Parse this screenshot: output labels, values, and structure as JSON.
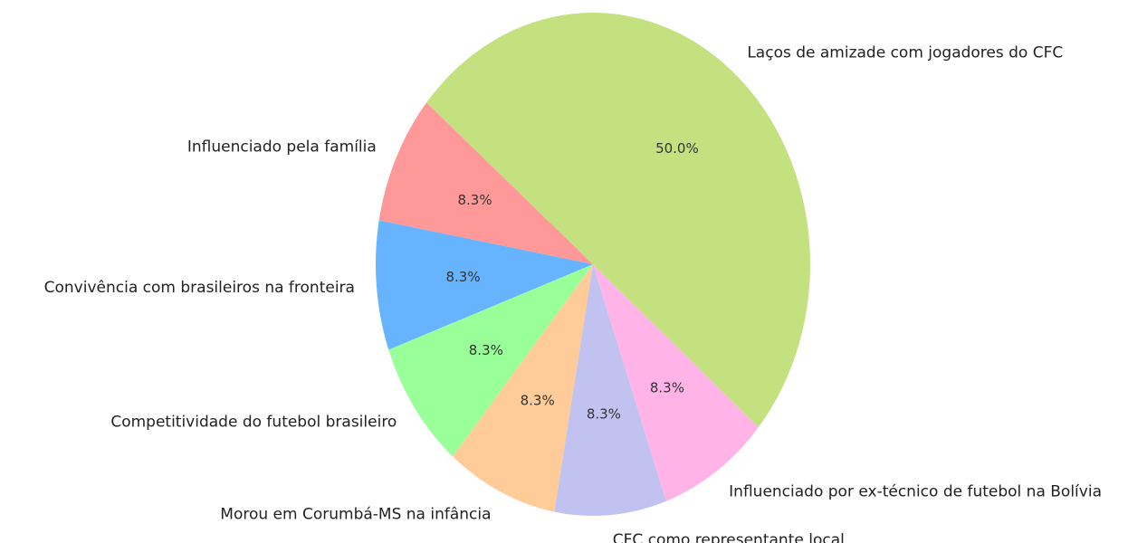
{
  "chart_data": {
    "type": "pie",
    "categories": [
      "Influenciado pela família",
      "Convivência com brasileiros na fronteira",
      "Competitividade do futebol brasileiro",
      "Morou em Corumbá-MS na infância",
      "CFC como representante local",
      "Influenciado por ex-técnico de futebol na Bolívia",
      "Laços de amizade com jogadores do CFC"
    ],
    "values": [
      8.3,
      8.3,
      8.3,
      8.3,
      8.3,
      8.3,
      50.0
    ],
    "value_labels": [
      "8.3%",
      "8.3%",
      "8.3%",
      "8.3%",
      "8.3%",
      "8.3%",
      "50.0%"
    ],
    "colors": [
      "#ff9999",
      "#66b3ff",
      "#99ff99",
      "#ffcc99",
      "#c2c2f0",
      "#ffb3e6",
      "#c4e17f"
    ]
  }
}
